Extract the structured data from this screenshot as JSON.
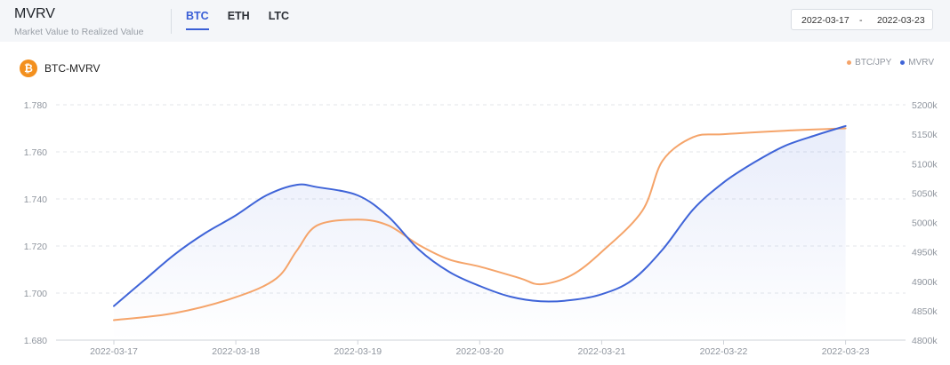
{
  "header": {
    "title": "MVRV",
    "subtitle": "Market Value to Realized Value",
    "tabs": [
      {
        "label": "BTC",
        "active": true
      },
      {
        "label": "ETH",
        "active": false
      },
      {
        "label": "LTC",
        "active": false
      }
    ],
    "date_start": "2022-03-17",
    "date_sep": "-",
    "date_end": "2022-03-23"
  },
  "chart_panel": {
    "coin_icon": "bitcoin-icon",
    "coin_glyph": "₿",
    "name": "BTC-MVRV"
  },
  "chart_data": {
    "type": "line",
    "title": "",
    "x": [
      "2022-03-17",
      "2022-03-18",
      "2022-03-19",
      "2022-03-20",
      "2022-03-21",
      "2022-03-22",
      "2022-03-23"
    ],
    "y_left_ticks": [
      "1.680",
      "1.700",
      "1.720",
      "1.740",
      "1.760",
      "1.780"
    ],
    "y_left_range": [
      1.68,
      1.78
    ],
    "y_right_ticks": [
      "4800k",
      "4850k",
      "4900k",
      "4950k",
      "5000k",
      "5050k",
      "5100k",
      "5150k",
      "5200k"
    ],
    "y_right_range": [
      4800,
      5200
    ],
    "legend_position": "top-right",
    "grid": true,
    "series": [
      {
        "name": "BTC/JPY",
        "axis": "right",
        "color": "#f5a46a",
        "points": [
          [
            "2022-03-17",
            4834
          ],
          [
            "2022-03-17 12:00",
            4846
          ],
          [
            "2022-03-18",
            4873
          ],
          [
            "2022-03-18 08:00",
            4905
          ],
          [
            "2022-03-18 12:00",
            4952
          ],
          [
            "2022-03-18 16:00",
            4995
          ],
          [
            "2022-03-19",
            5005
          ],
          [
            "2022-03-19 06:00",
            4995
          ],
          [
            "2022-03-19 12:00",
            4962
          ],
          [
            "2022-03-19 18:00",
            4937
          ],
          [
            "2022-03-20",
            4925
          ],
          [
            "2022-03-20 08:00",
            4905
          ],
          [
            "2022-03-20 12:00",
            4895
          ],
          [
            "2022-03-20 18:00",
            4910
          ],
          [
            "2022-03-21",
            4950
          ],
          [
            "2022-03-21 08:00",
            5020
          ],
          [
            "2022-03-21 12:00",
            5105
          ],
          [
            "2022-03-21 18:00",
            5145
          ],
          [
            "2022-03-22",
            5150
          ],
          [
            "2022-03-22 12:00",
            5156
          ],
          [
            "2022-03-23",
            5160
          ]
        ]
      },
      {
        "name": "MVRV",
        "axis": "left",
        "color": "#3f64d8",
        "points": [
          [
            "2022-03-17",
            1.6945
          ],
          [
            "2022-03-17 06:00",
            1.7055
          ],
          [
            "2022-03-17 12:00",
            1.7165
          ],
          [
            "2022-03-17 18:00",
            1.7255
          ],
          [
            "2022-03-18",
            1.733
          ],
          [
            "2022-03-18 06:00",
            1.7415
          ],
          [
            "2022-03-18 12:00",
            1.746
          ],
          [
            "2022-03-18 16:00",
            1.745
          ],
          [
            "2022-03-19",
            1.7415
          ],
          [
            "2022-03-19 06:00",
            1.7325
          ],
          [
            "2022-03-19 12:00",
            1.7185
          ],
          [
            "2022-03-19 18:00",
            1.709
          ],
          [
            "2022-03-20",
            1.703
          ],
          [
            "2022-03-20 06:00",
            1.6985
          ],
          [
            "2022-03-20 12:00",
            1.6965
          ],
          [
            "2022-03-20 18:00",
            1.697
          ],
          [
            "2022-03-21",
            1.6995
          ],
          [
            "2022-03-21 06:00",
            1.7055
          ],
          [
            "2022-03-21 12:00",
            1.7185
          ],
          [
            "2022-03-21 18:00",
            1.7355
          ],
          [
            "2022-03-22",
            1.747
          ],
          [
            "2022-03-22 06:00",
            1.7555
          ],
          [
            "2022-03-22 12:00",
            1.7625
          ],
          [
            "2022-03-22 18:00",
            1.767
          ],
          [
            "2022-03-23",
            1.771
          ]
        ]
      }
    ]
  }
}
